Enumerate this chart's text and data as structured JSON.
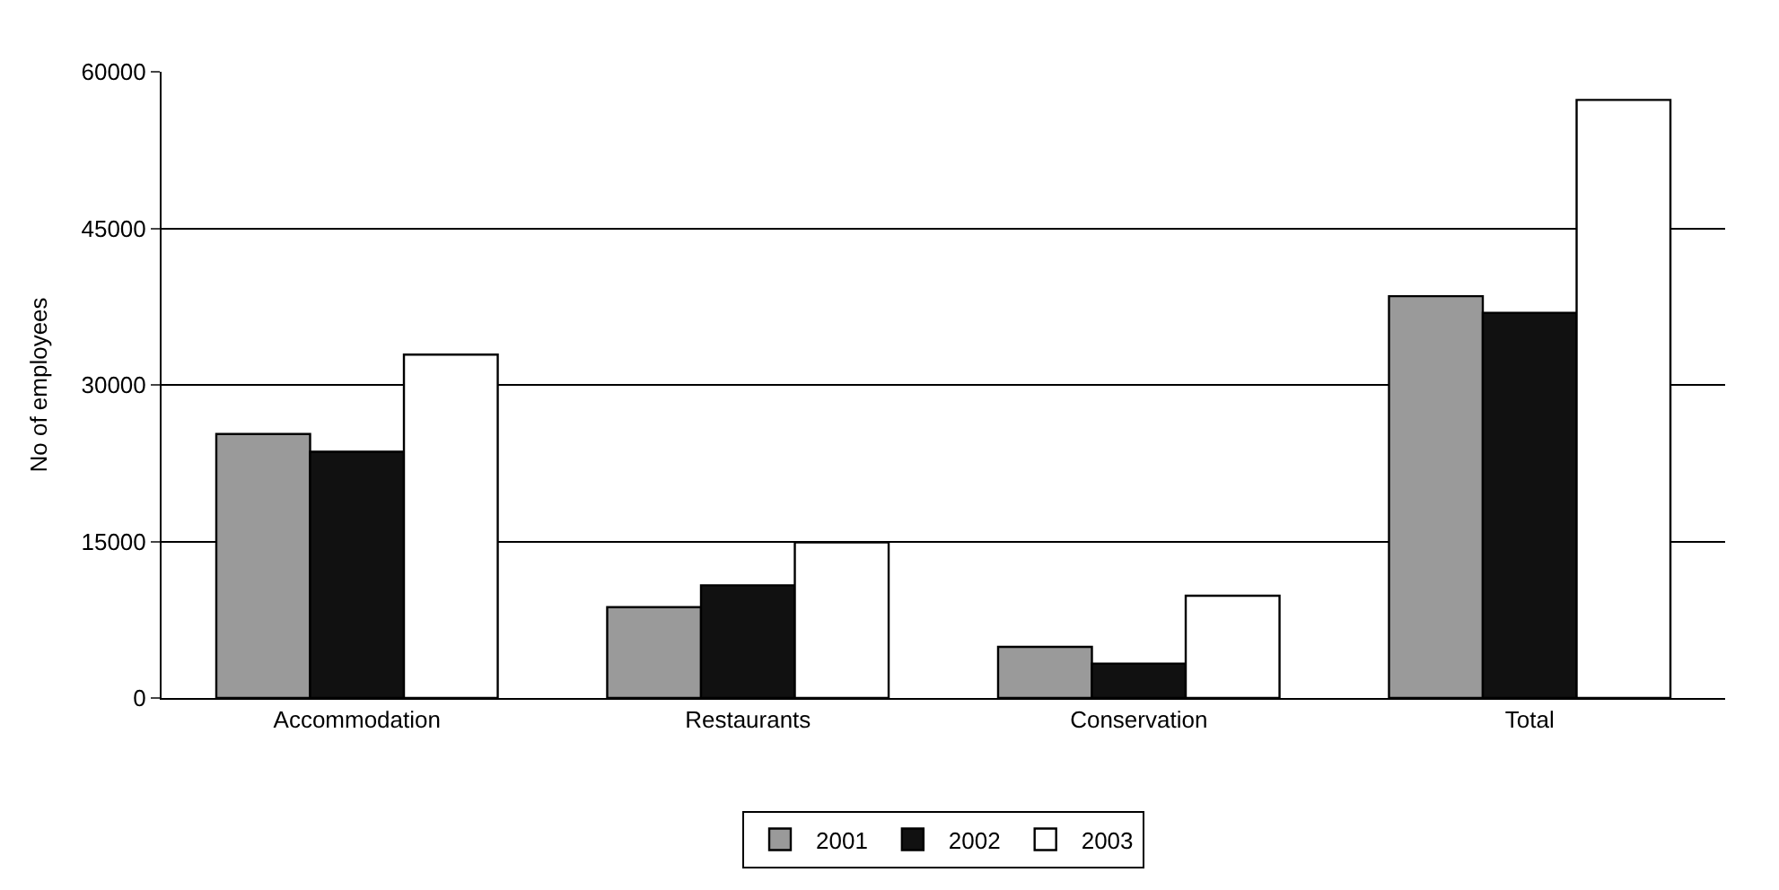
{
  "chart_data": {
    "type": "bar",
    "ylabel": "No of employees",
    "categories": [
      "Accommodation",
      "Restaurants",
      "Conservation",
      "Total"
    ],
    "series": [
      {
        "name": "2001",
        "color": "#9a9a9a",
        "values": [
          25300,
          8700,
          4900,
          38500
        ]
      },
      {
        "name": "2002",
        "color": "#111111",
        "values": [
          23600,
          10800,
          3300,
          36900
        ]
      },
      {
        "name": "2003",
        "color": "#ffffff",
        "values": [
          32900,
          14900,
          9800,
          57300
        ]
      }
    ],
    "ylim": [
      0,
      60000
    ],
    "yticks": [
      0,
      15000,
      30000,
      45000,
      60000
    ],
    "grid": "y",
    "legend": "bottom"
  }
}
